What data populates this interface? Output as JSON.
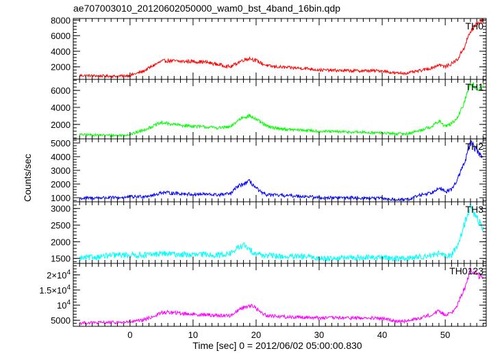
{
  "chart_data": {
    "type": "line",
    "title": "ae707003010_20120602050000_wam0_bst_4band_16bin.qdp",
    "xlabel": "Time [sec] 0 = 2012/06/02 05:00:00.830",
    "ylabel": "Counts/sec",
    "xlim": [
      -9,
      56.5
    ],
    "x_ticks": [
      0,
      10,
      20,
      30,
      40,
      50
    ],
    "x_tick_labels": [
      "0",
      "10",
      "20",
      "30",
      "40",
      "50"
    ],
    "grid": false,
    "panels": [
      {
        "name": "TH0",
        "color": "#ff0000",
        "ylim": [
          400,
          8200
        ],
        "y_ticks": [
          2000,
          4000,
          6000,
          8000
        ],
        "y_tick_labels": [
          "2000",
          "4000",
          "6000",
          "8000"
        ],
        "x": [
          -8,
          -5,
          -2,
          0,
          2,
          4,
          5,
          6,
          8,
          10,
          12,
          14,
          16,
          17,
          18,
          19,
          20,
          21,
          22,
          25,
          28,
          30,
          35,
          40,
          42,
          44,
          46,
          48,
          49,
          50,
          51,
          52,
          53,
          54,
          55,
          56
        ],
        "values": [
          900,
          850,
          800,
          900,
          1400,
          2300,
          2700,
          2800,
          2700,
          2700,
          2600,
          2300,
          2000,
          2500,
          2900,
          3100,
          2800,
          2400,
          2100,
          1900,
          1800,
          1600,
          1500,
          1500,
          1200,
          1200,
          1500,
          1900,
          2300,
          2000,
          2400,
          3000,
          4500,
          6500,
          7500,
          8000
        ]
      },
      {
        "name": "TH1",
        "color": "#00ff00",
        "ylim": [
          300,
          7300
        ],
        "y_ticks": [
          2000,
          4000,
          6000
        ],
        "y_tick_labels": [
          "2000",
          "4000",
          "6000"
        ],
        "x": [
          -8,
          -5,
          -2,
          0,
          2,
          4,
          5,
          6,
          8,
          10,
          12,
          14,
          16,
          17,
          18,
          19,
          20,
          21,
          22,
          25,
          28,
          30,
          35,
          40,
          42,
          44,
          46,
          48,
          49,
          50,
          51,
          52,
          53,
          54,
          55,
          56
        ],
        "values": [
          800,
          750,
          700,
          800,
          1300,
          1900,
          2200,
          2100,
          1900,
          1800,
          1700,
          1600,
          1700,
          2400,
          2900,
          3000,
          2600,
          2100,
          1700,
          1400,
          1300,
          1200,
          1100,
          1000,
          900,
          900,
          1300,
          1800,
          2400,
          1800,
          2100,
          2800,
          4500,
          7000,
          6200,
          6400
        ]
      },
      {
        "name": "TH2",
        "color": "#0000ff",
        "ylim": [
          700,
          5300
        ],
        "y_ticks": [
          1000,
          2000,
          3000,
          4000,
          5000
        ],
        "y_tick_labels": [
          "1000",
          "2000",
          "3000",
          "4000",
          "5000"
        ],
        "x": [
          -8,
          -5,
          -2,
          0,
          2,
          4,
          5,
          6,
          8,
          10,
          12,
          14,
          16,
          17,
          18,
          19,
          20,
          21,
          22,
          25,
          28,
          30,
          35,
          40,
          42,
          44,
          46,
          48,
          49,
          50,
          51,
          52,
          53,
          54,
          55,
          56
        ],
        "values": [
          950,
          1000,
          1000,
          1050,
          1100,
          1200,
          1400,
          1350,
          1300,
          1250,
          1250,
          1200,
          1300,
          1800,
          2000,
          2200,
          1700,
          1300,
          1200,
          1150,
          1100,
          1000,
          1000,
          950,
          850,
          850,
          1200,
          1400,
          1800,
          1400,
          1600,
          2400,
          3500,
          5000,
          4500,
          3800
        ]
      },
      {
        "name": "TH3",
        "color": "#00ffff",
        "ylim": [
          1350,
          3200
        ],
        "y_ticks": [
          1500,
          2000,
          2500,
          3000
        ],
        "y_tick_labels": [
          "1500",
          "2000",
          "2500",
          "3000"
        ],
        "x": [
          -8,
          -5,
          -2,
          0,
          2,
          4,
          5,
          6,
          8,
          10,
          12,
          14,
          16,
          17,
          18,
          19,
          20,
          21,
          22,
          25,
          28,
          30,
          35,
          40,
          42,
          44,
          46,
          48,
          49,
          50,
          51,
          52,
          53,
          54,
          55,
          56
        ],
        "values": [
          1500,
          1550,
          1600,
          1600,
          1600,
          1620,
          1650,
          1630,
          1620,
          1600,
          1620,
          1600,
          1650,
          1800,
          1900,
          1750,
          1650,
          1600,
          1580,
          1550,
          1550,
          1500,
          1520,
          1530,
          1500,
          1500,
          1550,
          1600,
          1650,
          1550,
          1600,
          1900,
          2500,
          3050,
          2700,
          2400
        ]
      },
      {
        "name": "TH0123",
        "color": "#ff00ff",
        "ylim": [
          3000,
          23800
        ],
        "y_ticks": [
          5000,
          10000,
          15000,
          20000
        ],
        "y_tick_labels": [
          "5000",
          "10^4",
          "1.5×10^4",
          "2×10^4"
        ],
        "x": [
          -8,
          -5,
          -2,
          0,
          2,
          4,
          5,
          6,
          8,
          10,
          12,
          14,
          16,
          17,
          18,
          19,
          20,
          21,
          22,
          25,
          28,
          30,
          35,
          40,
          42,
          44,
          46,
          48,
          49,
          50,
          51,
          52,
          53,
          54,
          55,
          56
        ],
        "values": [
          4100,
          4200,
          4300,
          4400,
          5000,
          6500,
          7500,
          7600,
          7300,
          7000,
          6800,
          6600,
          6500,
          8200,
          9200,
          10000,
          9000,
          7200,
          6500,
          6100,
          6000,
          5800,
          5800,
          5600,
          4800,
          4700,
          5800,
          7000,
          8000,
          6800,
          7500,
          10500,
          15000,
          22000,
          20000,
          19000
        ]
      }
    ]
  }
}
